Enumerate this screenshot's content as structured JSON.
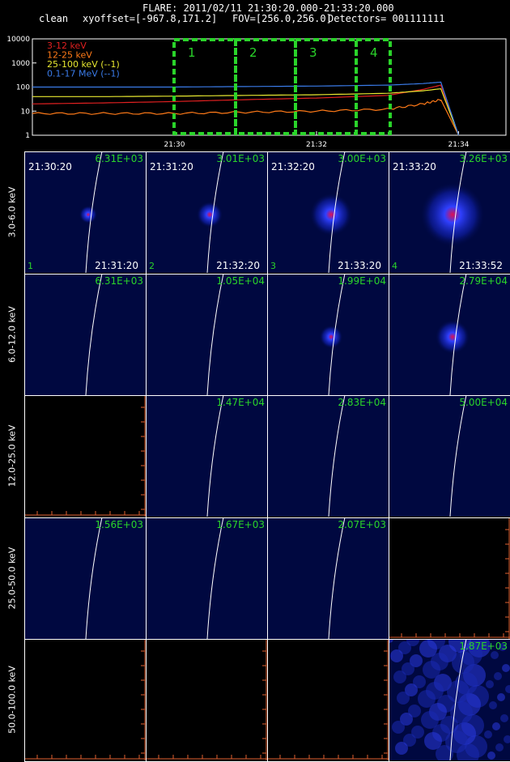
{
  "header": {
    "flare_line": "FLARE: 2011/02/11 21:30:20.000-21:33:20.000",
    "method": "clean",
    "xyoffset": "xyoffset=[-967.8,171.2]",
    "fov": "FOV=[256.0,256.0]",
    "detectors": "Detectors= 001111111"
  },
  "lightcurve": {
    "y_ticks": [
      "10000",
      "1000",
      "100",
      "10",
      "1"
    ],
    "x_ticks": [
      "21:30",
      "21:32",
      "21:34"
    ],
    "legend": [
      {
        "label": "3-12 keV",
        "color": "#e02020"
      },
      {
        "label": "12-25 keV",
        "color": "#ff7a18"
      },
      {
        "label": "25-100 keV (--1)",
        "color": "#e8e830"
      },
      {
        "label": "0.1-17 MeV (--1)",
        "color": "#3a7be8"
      }
    ],
    "intervals": [
      "1",
      "2",
      "3",
      "4"
    ],
    "interval_color": "#2ad42a",
    "chart_data": {
      "type": "line",
      "yscale": "log",
      "ylim": [
        1,
        10000
      ],
      "x": [
        "21:28:00",
        "21:29:00",
        "21:30:00",
        "21:31:00",
        "21:32:00",
        "21:33:00",
        "21:33:30",
        "21:33:45",
        "21:34:00"
      ],
      "series": [
        {
          "name": "3-12 keV",
          "values": [
            20,
            22,
            25,
            30,
            35,
            45,
            80,
            120,
            1
          ]
        },
        {
          "name": "12-25 keV",
          "values": [
            8,
            8,
            8,
            9,
            10,
            12,
            20,
            30,
            1
          ]
        },
        {
          "name": "25-100 keV (--1)",
          "values": [
            40,
            40,
            42,
            45,
            48,
            55,
            70,
            85,
            1
          ]
        },
        {
          "name": "0.1-17 MeV (--1)",
          "values": [
            100,
            100,
            100,
            105,
            110,
            120,
            140,
            160,
            1
          ]
        }
      ]
    }
  },
  "rows": [
    {
      "energy": "3.0-6.0 keV",
      "panels": [
        {
          "value": "6.31E+03",
          "start": "21:30:20",
          "end": "21:31:20",
          "num": "1",
          "blob": 0.15
        },
        {
          "value": "3.01E+03",
          "start": "21:31:20",
          "end": "21:32:20",
          "num": "2",
          "blob": 0.3
        },
        {
          "value": "3.00E+03",
          "start": "21:32:20",
          "end": "21:33:20",
          "num": "3",
          "blob": 0.6
        },
        {
          "value": "3.26E+03",
          "start": "21:33:20",
          "end": "21:33:52",
          "num": "4",
          "blob": 1.0
        }
      ]
    },
    {
      "energy": "6.0-12.0 keV",
      "panels": [
        {
          "value": "6.31E+03",
          "blob": 0
        },
        {
          "value": "1.05E+04",
          "blob": 0
        },
        {
          "value": "1.99E+04",
          "blob": 0.25
        },
        {
          "value": "2.79E+04",
          "blob": 0.45
        }
      ]
    },
    {
      "energy": "12.0-25.0 keV",
      "panels": [
        {
          "value": "",
          "blob": -1
        },
        {
          "value": "1.47E+04",
          "blob": 0
        },
        {
          "value": "2.83E+04",
          "blob": 0
        },
        {
          "value": "5.00E+04",
          "blob": 0
        }
      ]
    },
    {
      "energy": "25.0-50.0 keV",
      "panels": [
        {
          "value": "1.56E+03",
          "blob": 0
        },
        {
          "value": "1.67E+03",
          "blob": 0
        },
        {
          "value": "2.07E+03",
          "blob": 0
        },
        {
          "value": "",
          "blob": -1
        }
      ]
    },
    {
      "energy": "50.0-100.0 keV",
      "panels": [
        {
          "value": "",
          "blob": -1
        },
        {
          "value": "",
          "blob": -1
        },
        {
          "value": "",
          "blob": -1
        },
        {
          "value": "1.87E+03",
          "blob": 2
        }
      ]
    }
  ]
}
